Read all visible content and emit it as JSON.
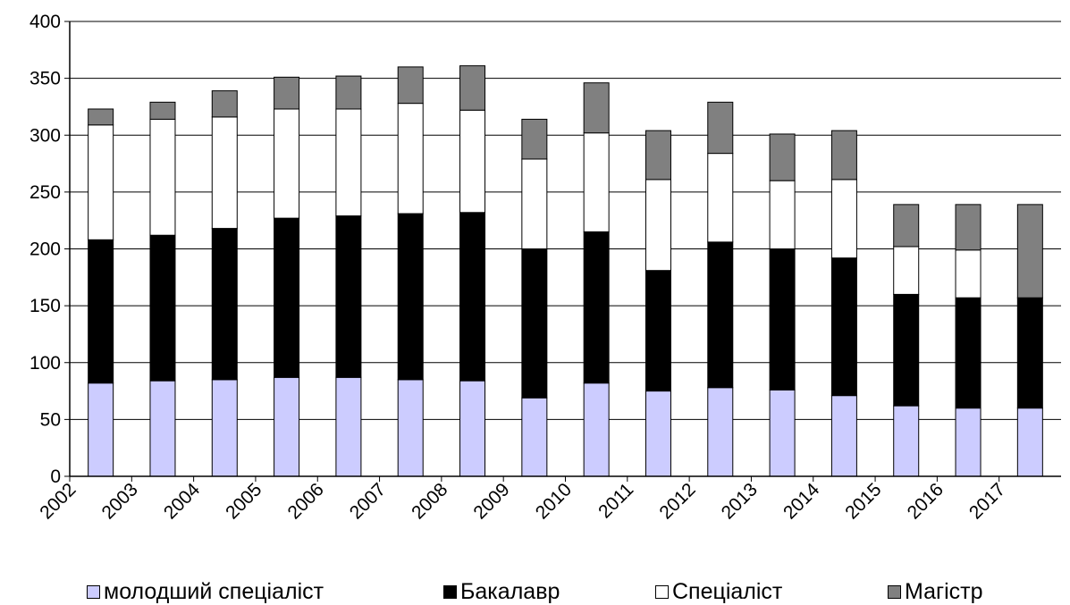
{
  "chart_data": {
    "type": "bar",
    "stacked": true,
    "categories": [
      "2002",
      "2003",
      "2004",
      "2005",
      "2006",
      "2007",
      "2008",
      "2009",
      "2010",
      "2011",
      "2012",
      "2013",
      "2014",
      "2015",
      "2016",
      "2017"
    ],
    "ylim": [
      0,
      400
    ],
    "yticks": [
      0,
      50,
      100,
      150,
      200,
      250,
      300,
      350,
      400
    ],
    "grid": true,
    "legend_position": "bottom",
    "series": [
      {
        "name": "молодший спеціаліст",
        "color": "#ccccff",
        "values": [
          82,
          84,
          85,
          87,
          87,
          85,
          84,
          69,
          82,
          75,
          78,
          76,
          71,
          62,
          60,
          60
        ]
      },
      {
        "name": "Бакалавр",
        "color": "#000000",
        "values": [
          126,
          128,
          133,
          140,
          142,
          146,
          148,
          131,
          133,
          106,
          128,
          124,
          121,
          98,
          97,
          97
        ]
      },
      {
        "name": "Спеціаліст",
        "color": "#ffffff",
        "values": [
          101,
          102,
          98,
          96,
          94,
          97,
          90,
          79,
          87,
          80,
          78,
          60,
          69,
          42,
          42,
          0
        ]
      },
      {
        "name": "Магістр",
        "color": "#808080",
        "values": [
          14,
          15,
          23,
          28,
          29,
          32,
          39,
          35,
          44,
          43,
          45,
          41,
          43,
          37,
          40,
          82
        ]
      }
    ]
  }
}
